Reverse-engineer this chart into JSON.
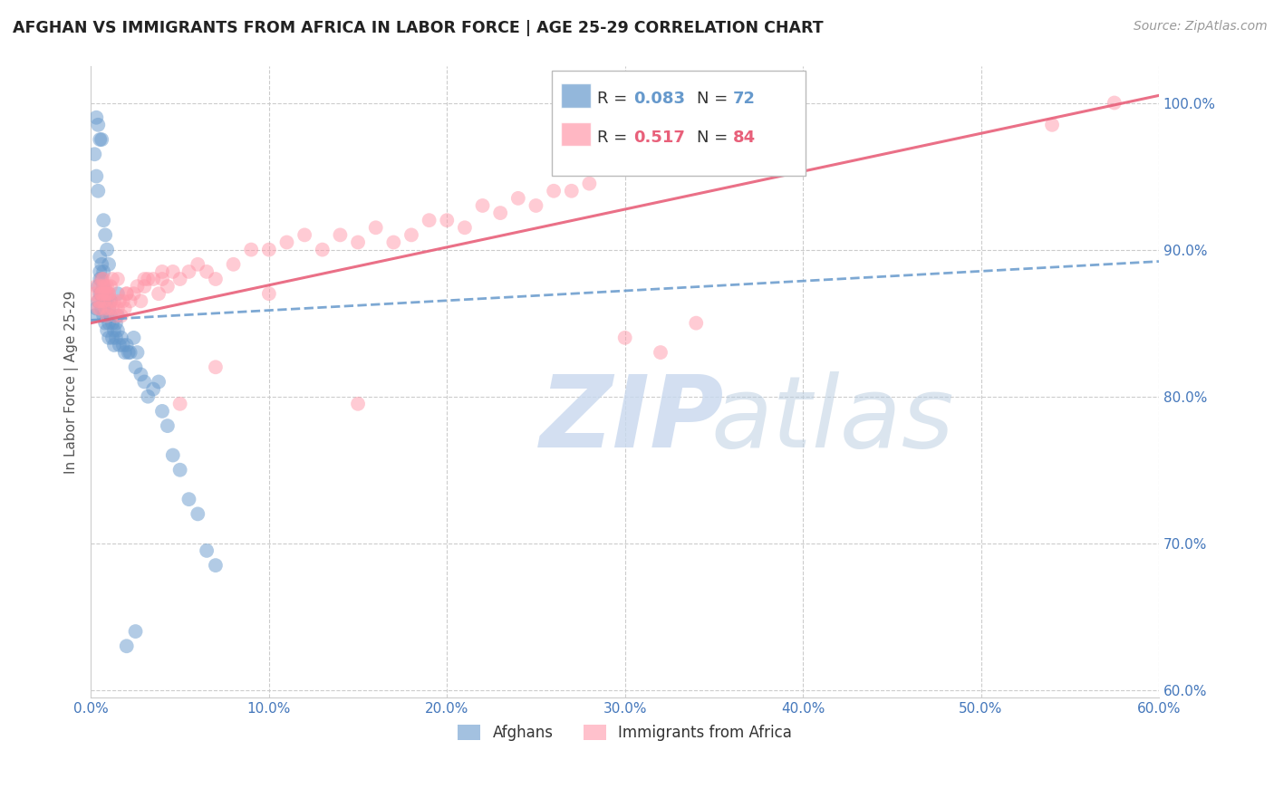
{
  "title": "AFGHAN VS IMMIGRANTS FROM AFRICA IN LABOR FORCE | AGE 25-29 CORRELATION CHART",
  "source": "Source: ZipAtlas.com",
  "ylabel": "In Labor Force | Age 25-29",
  "xmin": 0.0,
  "xmax": 0.6,
  "ymin": 0.595,
  "ymax": 1.025,
  "yticks": [
    0.6,
    0.7,
    0.8,
    0.9,
    1.0
  ],
  "ytick_labels": [
    "60.0%",
    "70.0%",
    "80.0%",
    "90.0%",
    "100.0%"
  ],
  "xticks": [
    0.0,
    0.1,
    0.2,
    0.3,
    0.4,
    0.5,
    0.6
  ],
  "xtick_labels": [
    "0.0%",
    "10.0%",
    "20.0%",
    "30.0%",
    "40.0%",
    "50.0%",
    "60.0%"
  ],
  "blue_color": "#6699cc",
  "pink_color": "#ff99aa",
  "pink_line_color": "#e8607a",
  "blue_label": "Afghans",
  "pink_label": "Immigrants from Africa",
  "axis_color": "#4477bb",
  "grid_color": "#cccccc",
  "blue_scatter_x": [
    0.002,
    0.003,
    0.004,
    0.004,
    0.005,
    0.005,
    0.005,
    0.005,
    0.006,
    0.006,
    0.006,
    0.006,
    0.007,
    0.007,
    0.007,
    0.007,
    0.008,
    0.008,
    0.008,
    0.009,
    0.009,
    0.009,
    0.01,
    0.01,
    0.01,
    0.011,
    0.011,
    0.012,
    0.012,
    0.013,
    0.013,
    0.014,
    0.014,
    0.015,
    0.015,
    0.016,
    0.017,
    0.018,
    0.019,
    0.02,
    0.021,
    0.022,
    0.024,
    0.025,
    0.026,
    0.028,
    0.03,
    0.032,
    0.035,
    0.038,
    0.04,
    0.043,
    0.046,
    0.05,
    0.055,
    0.06,
    0.065,
    0.07,
    0.002,
    0.003,
    0.004,
    0.005,
    0.003,
    0.004,
    0.006,
    0.007,
    0.008,
    0.009,
    0.01,
    0.015,
    0.02,
    0.025
  ],
  "blue_scatter_y": [
    0.855,
    0.86,
    0.865,
    0.875,
    0.87,
    0.88,
    0.885,
    0.895,
    0.86,
    0.87,
    0.88,
    0.89,
    0.855,
    0.865,
    0.875,
    0.885,
    0.85,
    0.86,
    0.87,
    0.845,
    0.855,
    0.865,
    0.84,
    0.85,
    0.86,
    0.855,
    0.865,
    0.84,
    0.85,
    0.835,
    0.845,
    0.84,
    0.85,
    0.845,
    0.855,
    0.835,
    0.84,
    0.835,
    0.83,
    0.835,
    0.83,
    0.83,
    0.84,
    0.82,
    0.83,
    0.815,
    0.81,
    0.8,
    0.805,
    0.81,
    0.79,
    0.78,
    0.76,
    0.75,
    0.73,
    0.72,
    0.695,
    0.685,
    0.965,
    0.95,
    0.94,
    0.975,
    0.99,
    0.985,
    0.975,
    0.92,
    0.91,
    0.9,
    0.89,
    0.87,
    0.63,
    0.64
  ],
  "pink_scatter_x": [
    0.002,
    0.003,
    0.004,
    0.005,
    0.005,
    0.006,
    0.006,
    0.007,
    0.007,
    0.008,
    0.008,
    0.009,
    0.009,
    0.01,
    0.01,
    0.011,
    0.011,
    0.012,
    0.013,
    0.014,
    0.015,
    0.016,
    0.017,
    0.018,
    0.019,
    0.02,
    0.022,
    0.024,
    0.026,
    0.028,
    0.03,
    0.032,
    0.035,
    0.038,
    0.04,
    0.043,
    0.046,
    0.05,
    0.055,
    0.06,
    0.065,
    0.07,
    0.08,
    0.09,
    0.1,
    0.11,
    0.12,
    0.13,
    0.14,
    0.15,
    0.16,
    0.17,
    0.18,
    0.19,
    0.2,
    0.21,
    0.22,
    0.23,
    0.24,
    0.25,
    0.26,
    0.27,
    0.28,
    0.3,
    0.32,
    0.34,
    0.004,
    0.005,
    0.006,
    0.007,
    0.008,
    0.009,
    0.01,
    0.012,
    0.015,
    0.02,
    0.03,
    0.04,
    0.05,
    0.07,
    0.1,
    0.15,
    0.54,
    0.575
  ],
  "pink_scatter_y": [
    0.87,
    0.875,
    0.865,
    0.86,
    0.875,
    0.87,
    0.88,
    0.865,
    0.875,
    0.86,
    0.875,
    0.855,
    0.87,
    0.86,
    0.87,
    0.865,
    0.875,
    0.86,
    0.865,
    0.855,
    0.86,
    0.865,
    0.855,
    0.865,
    0.86,
    0.87,
    0.865,
    0.87,
    0.875,
    0.865,
    0.875,
    0.88,
    0.88,
    0.87,
    0.88,
    0.875,
    0.885,
    0.88,
    0.885,
    0.89,
    0.885,
    0.88,
    0.89,
    0.9,
    0.9,
    0.905,
    0.91,
    0.9,
    0.91,
    0.905,
    0.915,
    0.905,
    0.91,
    0.92,
    0.92,
    0.915,
    0.93,
    0.925,
    0.935,
    0.93,
    0.94,
    0.94,
    0.945,
    0.84,
    0.83,
    0.85,
    0.86,
    0.865,
    0.87,
    0.88,
    0.87,
    0.875,
    0.87,
    0.88,
    0.88,
    0.87,
    0.88,
    0.885,
    0.795,
    0.82,
    0.87,
    0.795,
    0.985,
    1.0
  ],
  "blue_trend_x0": 0.0,
  "blue_trend_y0": 0.852,
  "blue_trend_x1": 0.6,
  "blue_trend_y1": 0.892,
  "pink_trend_x0": 0.0,
  "pink_trend_y0": 0.85,
  "pink_trend_x1": 0.6,
  "pink_trend_y1": 1.005
}
